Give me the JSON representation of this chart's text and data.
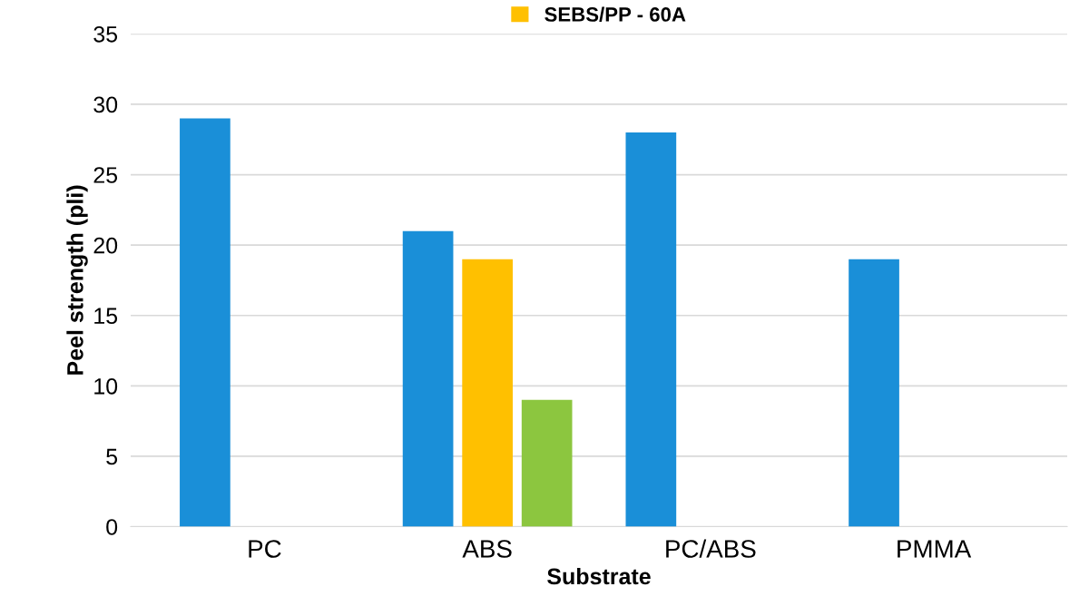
{
  "chart_data": {
    "type": "bar",
    "xlabel": "Substrate",
    "ylabel": "Peel strength (pli)",
    "categories": [
      "PC",
      "ABS",
      "PC/ABS",
      "PMMA"
    ],
    "series": [
      {
        "color": "#1a8fd8",
        "values": [
          29,
          21,
          28,
          19
        ]
      },
      {
        "name": "SEBS/PP - 60A",
        "color": "#ffc000",
        "values": [
          null,
          19,
          null,
          null
        ]
      },
      {
        "color": "#8cc63f",
        "values": [
          null,
          9,
          null,
          null
        ]
      }
    ],
    "ylim": [
      0,
      35
    ],
    "yticks": [
      0,
      5,
      10,
      15,
      20,
      25,
      30,
      35
    ],
    "grid": "y",
    "legend": "top"
  }
}
